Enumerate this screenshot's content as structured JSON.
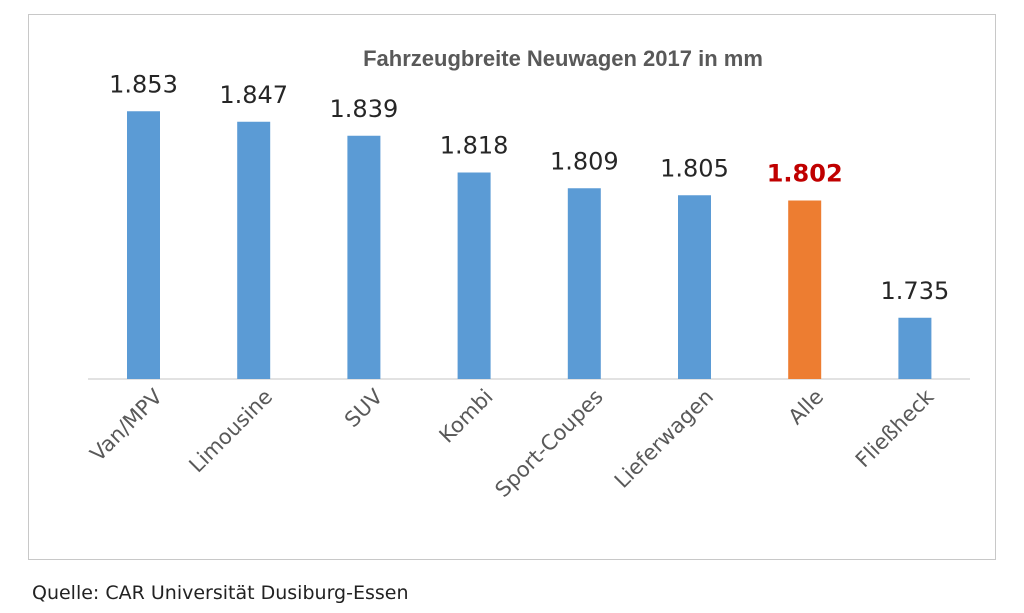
{
  "chart_data": {
    "type": "bar",
    "title": "Fahrzeugbreite Neuwagen 2017 in mm",
    "xlabel": "",
    "ylabel": "",
    "grid": false,
    "ylim": [
      1700,
      1860
    ],
    "categories": [
      "Van/MPV",
      "Limousine",
      "SUV",
      "Kombi",
      "Sport-Coupes",
      "Lieferwagen",
      "Alle",
      "Fließheck"
    ],
    "values": [
      1853,
      1847,
      1839,
      1818,
      1809,
      1805,
      1802,
      1735
    ],
    "value_labels": [
      "1.853",
      "1.847",
      "1.839",
      "1.818",
      "1.809",
      "1.805",
      "1.802",
      "1.735"
    ],
    "highlight_category": "Alle",
    "colors": {
      "default_bar": "#5b9bd5",
      "highlight_bar": "#ed7d31",
      "highlight_label": "#c00000",
      "label": "#262626",
      "axis": "#d9d9d9",
      "title": "#595959",
      "tick": "#595959"
    }
  },
  "source": "Quelle: CAR Universität Dusiburg-Essen"
}
